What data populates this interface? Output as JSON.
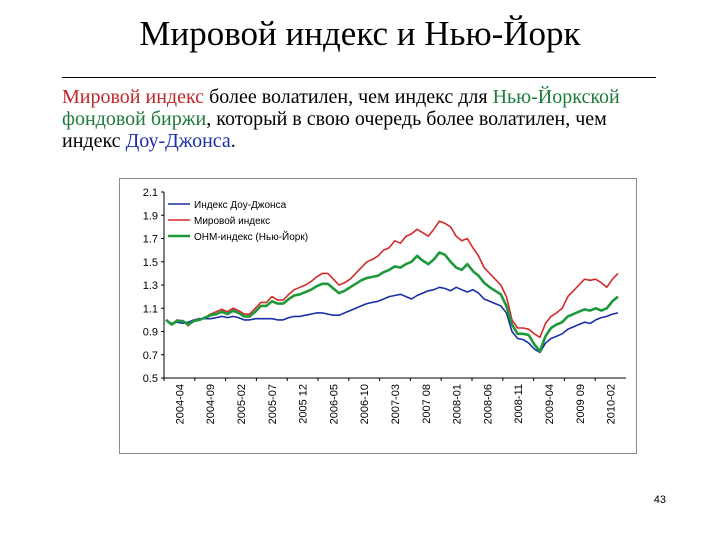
{
  "slide": {
    "title": "Мировой индекс и Нью-Йорк",
    "body": {
      "t1": "Мировой индекс",
      "t2": " более волатилен, чем индекс для ",
      "t3": "Нью-Йоркской фондовой биржи",
      "t4": ", который в свою очередь более волатилен, чем индекс ",
      "t5": "Доу-Джонса",
      "t6": "."
    },
    "page_number": "43"
  },
  "colors": {
    "dow": "#1a2fa8",
    "world": "#d42a2a",
    "nyse": "#1c9a3a",
    "red_text": "#c0262a",
    "green_text": "#1e7b3a",
    "blue_text": "#1a2fa8"
  },
  "chart_data": {
    "type": "line",
    "title": "",
    "xlabel": "",
    "ylabel": "",
    "ylim": [
      0.5,
      2.1
    ],
    "y_ticks": [
      "2.1",
      "1.9",
      "1.7",
      "1.5",
      "1.3",
      "1.1",
      "0.9",
      "0.7",
      "0.5"
    ],
    "x_tick_labels": [
      "2004-04",
      "2004-09",
      "2005-02",
      "2005-07",
      "2005 12",
      "2006-05",
      "2006-10",
      "2007-03",
      "2007 08",
      "2008-01",
      "2008-06",
      "2008-11",
      "2009-04",
      "2009 09",
      "2010-02"
    ],
    "legend": "top-left",
    "grid": false,
    "series": [
      {
        "name": "Индекс Доу-Джонса",
        "color": "#1a2fa8",
        "values": [
          1.0,
          0.97,
          0.98,
          0.97,
          0.98,
          1.0,
          1.01,
          1.01,
          1.01,
          1.02,
          1.03,
          1.02,
          1.03,
          1.02,
          1.0,
          1.0,
          1.01,
          1.01,
          1.01,
          1.01,
          1.0,
          1.0,
          1.02,
          1.03,
          1.03,
          1.04,
          1.05,
          1.06,
          1.06,
          1.05,
          1.04,
          1.04,
          1.06,
          1.08,
          1.1,
          1.12,
          1.14,
          1.15,
          1.16,
          1.18,
          1.2,
          1.21,
          1.22,
          1.2,
          1.18,
          1.21,
          1.23,
          1.25,
          1.26,
          1.28,
          1.27,
          1.25,
          1.28,
          1.26,
          1.24,
          1.26,
          1.23,
          1.18,
          1.16,
          1.14,
          1.12,
          1.06,
          0.9,
          0.84,
          0.83,
          0.8,
          0.75,
          0.72,
          0.8,
          0.84,
          0.86,
          0.88,
          0.92,
          0.94,
          0.96,
          0.98,
          0.97,
          1.0,
          1.02,
          1.03,
          1.05,
          1.06
        ]
      },
      {
        "name": "Мировой индекс",
        "color": "#d42a2a",
        "values": [
          1.0,
          0.96,
          1.0,
          0.99,
          0.95,
          1.0,
          1.0,
          1.02,
          1.05,
          1.07,
          1.09,
          1.07,
          1.1,
          1.08,
          1.05,
          1.05,
          1.1,
          1.15,
          1.15,
          1.2,
          1.17,
          1.17,
          1.22,
          1.26,
          1.28,
          1.3,
          1.33,
          1.37,
          1.4,
          1.4,
          1.35,
          1.3,
          1.32,
          1.35,
          1.4,
          1.45,
          1.5,
          1.52,
          1.55,
          1.6,
          1.62,
          1.68,
          1.66,
          1.72,
          1.74,
          1.78,
          1.75,
          1.72,
          1.78,
          1.85,
          1.83,
          1.8,
          1.72,
          1.68,
          1.7,
          1.62,
          1.55,
          1.45,
          1.4,
          1.35,
          1.3,
          1.2,
          1.0,
          0.93,
          0.93,
          0.92,
          0.88,
          0.85,
          0.97,
          1.03,
          1.06,
          1.1,
          1.2,
          1.25,
          1.3,
          1.35,
          1.34,
          1.35,
          1.32,
          1.28,
          1.35,
          1.4
        ]
      },
      {
        "name": "ОНМ-индекс (Нью-Йорк)",
        "color": "#1c9a3a",
        "values": [
          1.0,
          0.96,
          0.99,
          0.99,
          0.96,
          0.99,
          1.0,
          1.02,
          1.04,
          1.05,
          1.07,
          1.05,
          1.08,
          1.06,
          1.03,
          1.03,
          1.07,
          1.12,
          1.12,
          1.16,
          1.14,
          1.14,
          1.18,
          1.21,
          1.22,
          1.24,
          1.26,
          1.29,
          1.31,
          1.31,
          1.27,
          1.23,
          1.25,
          1.28,
          1.31,
          1.34,
          1.36,
          1.37,
          1.38,
          1.41,
          1.43,
          1.46,
          1.45,
          1.48,
          1.5,
          1.55,
          1.51,
          1.48,
          1.52,
          1.58,
          1.56,
          1.5,
          1.45,
          1.43,
          1.48,
          1.42,
          1.38,
          1.32,
          1.28,
          1.25,
          1.22,
          1.12,
          0.96,
          0.88,
          0.88,
          0.87,
          0.79,
          0.73,
          0.86,
          0.93,
          0.96,
          0.98,
          1.03,
          1.05,
          1.07,
          1.09,
          1.08,
          1.1,
          1.08,
          1.1,
          1.16,
          1.2
        ]
      }
    ]
  }
}
